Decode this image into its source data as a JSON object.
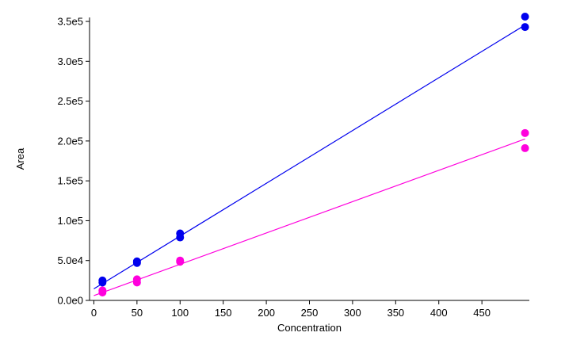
{
  "chart_data": {
    "type": "scatter",
    "xlabel": "Concentration",
    "ylabel": "Area",
    "xlim": [
      -5,
      505
    ],
    "ylim": [
      0,
      355000
    ],
    "x_ticks": [
      0,
      50,
      100,
      150,
      200,
      250,
      300,
      350,
      400,
      450
    ],
    "x_tick_labels": [
      "0",
      "50",
      "100",
      "150",
      "200",
      "250",
      "300",
      "350",
      "400",
      "450"
    ],
    "y_ticks": [
      0,
      50000,
      100000,
      150000,
      200000,
      250000,
      300000,
      350000
    ],
    "y_tick_labels": [
      "0.0e0",
      "5.0e4",
      "1.0e5",
      "1.5e5",
      "2.0e5",
      "2.5e5",
      "3.0e5",
      "3.5e5"
    ],
    "grid": false,
    "series": [
      {
        "color": "#0000ee",
        "points": [
          {
            "x": 10,
            "y": 25000
          },
          {
            "x": 10,
            "y": 22500
          },
          {
            "x": 50,
            "y": 49000
          },
          {
            "x": 50,
            "y": 47000
          },
          {
            "x": 100,
            "y": 84000
          },
          {
            "x": 100,
            "y": 79000
          },
          {
            "x": 500,
            "y": 356000
          },
          {
            "x": 500,
            "y": 343000
          }
        ],
        "fit_line": {
          "x0": 0,
          "y0": 14500,
          "x1": 500,
          "y1": 345500
        }
      },
      {
        "color": "#ff00dd",
        "points": [
          {
            "x": 10,
            "y": 12500
          },
          {
            "x": 10,
            "y": 10000
          },
          {
            "x": 50,
            "y": 26500
          },
          {
            "x": 50,
            "y": 22500
          },
          {
            "x": 100,
            "y": 50000
          },
          {
            "x": 100,
            "y": 48500
          },
          {
            "x": 500,
            "y": 210000
          },
          {
            "x": 500,
            "y": 191000
          }
        ],
        "fit_line": {
          "x0": 0,
          "y0": 6000,
          "x1": 500,
          "y1": 202500
        }
      }
    ]
  }
}
